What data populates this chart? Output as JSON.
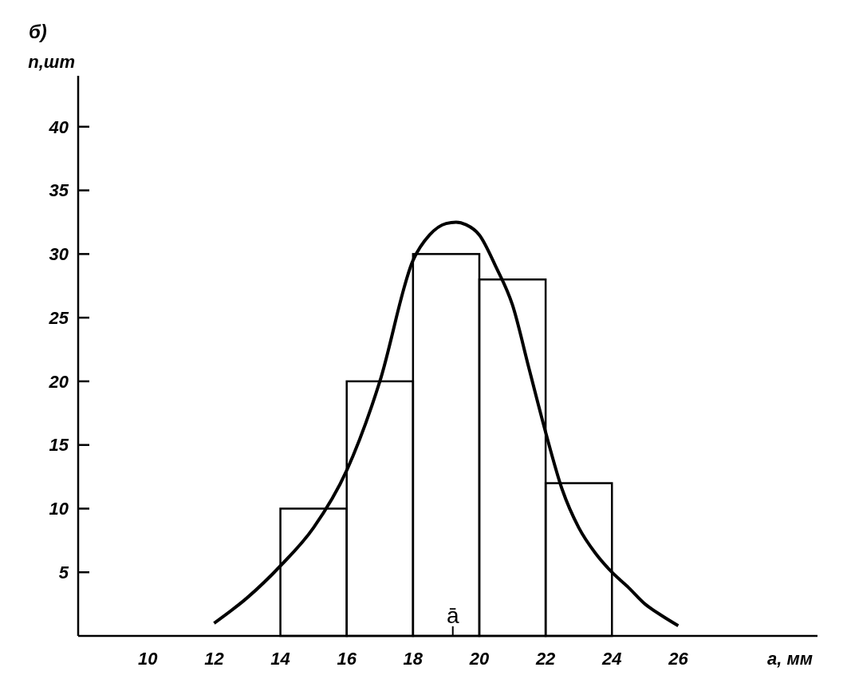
{
  "chart_data": {
    "type": "histogram",
    "xlabel": "a, мм",
    "ylabel": "n,шт",
    "bins": [
      14,
      16,
      18,
      20,
      22,
      24
    ],
    "values": [
      10,
      20,
      30,
      28,
      12
    ],
    "color": "#000000",
    "series": [
      {
        "type": "line",
        "color": "#000000",
        "x": [
          12,
          13,
          14,
          15,
          16,
          17,
          18,
          18.5,
          19,
          19.3,
          19.6,
          20,
          20.5,
          21,
          21.5,
          22,
          22.5,
          23,
          23.5,
          24,
          24.5,
          25,
          25.5,
          26
        ],
        "values": [
          1,
          3,
          5.5,
          8.5,
          13,
          20,
          29.5,
          31.5,
          32.4,
          32.5,
          32.3,
          31.5,
          29,
          26,
          21,
          16,
          11.5,
          8.5,
          6.5,
          5,
          3.8,
          2.5,
          1.6,
          0.8
        ]
      }
    ],
    "xlim": [
      7.9,
      30.2
    ],
    "ylim": [
      0,
      44
    ],
    "xticks": [
      10,
      12,
      14,
      16,
      18,
      20,
      22,
      24,
      26
    ],
    "yticks": [
      5,
      10,
      15,
      20,
      25,
      30,
      35,
      40
    ],
    "grid": false,
    "annotations": [
      "б)",
      {
        "text": "ā",
        "x": 19.2,
        "y": 0
      }
    ]
  }
}
